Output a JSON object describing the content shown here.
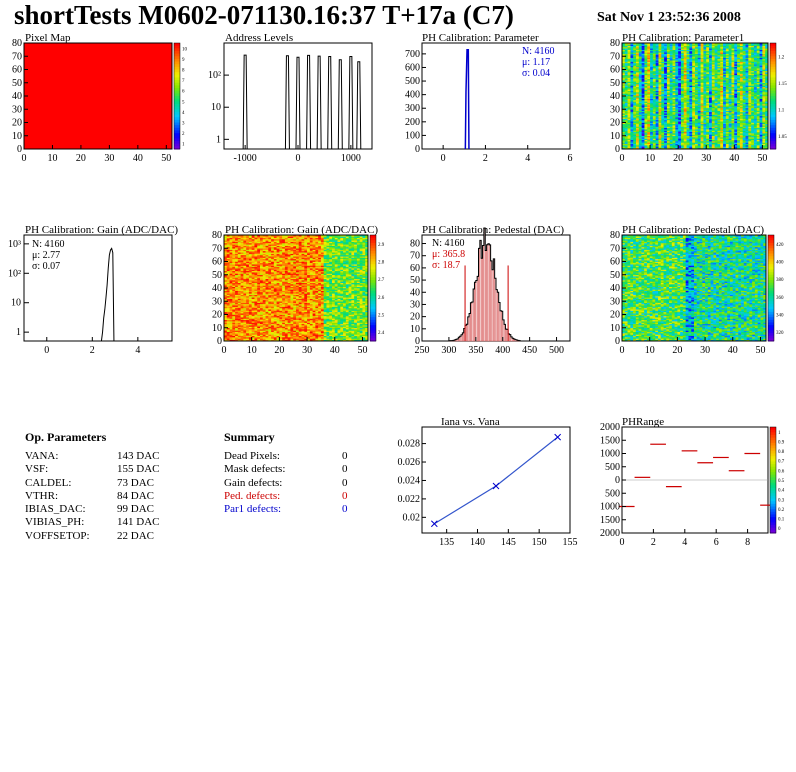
{
  "header": {
    "title": "shortTests M0602-071130.16:37 T+17a (C7)",
    "date": "Sat Nov  1 23:52:36 2008"
  },
  "colors": {
    "dark_red": "#cc0000",
    "blue": "#0000cc",
    "hist_line": "#000000",
    "graph_line": "#3355cc",
    "pedestal_fill": "#cc3333"
  },
  "plots": {
    "pixel_map": {
      "title": "Pixel Map",
      "type": "heatmap",
      "value": 10,
      "x_ticks": [
        "0",
        "10",
        "20",
        "30",
        "40",
        "50"
      ],
      "y_ticks": [
        "0",
        "10",
        "20",
        "30",
        "40",
        "50",
        "60",
        "70",
        "80"
      ],
      "z_ticks": [
        "10",
        "9",
        "8",
        "7",
        "6",
        "5",
        "4",
        "3",
        "2",
        "1"
      ]
    },
    "address_levels": {
      "title": "Address Levels",
      "type": "bar",
      "x_ticks": [
        "-1000",
        "0",
        "1000"
      ],
      "xlim": [
        -1400,
        1400
      ],
      "log_y": true,
      "peaks_x": [
        -1000,
        -200,
        0,
        200,
        400,
        600,
        800,
        1000,
        1150
      ]
    },
    "ph_param": {
      "title": "PH Calibration: Parameter",
      "type": "bar",
      "x_ticks": [
        "0",
        "2",
        "4",
        "6"
      ],
      "xlim": [
        -1,
        6
      ],
      "y_ticks": [
        "0",
        "100",
        "200",
        "300",
        "400",
        "500",
        "600",
        "700"
      ],
      "ylim": [
        0,
        780
      ],
      "stats": {
        "n": "N: 4160",
        "mean": "μ: 1.17",
        "sigma": "σ: 0.04"
      }
    },
    "ph_param1": {
      "title": "PH Calibration: Parameter1",
      "type": "heatmap",
      "x_ticks": [
        "0",
        "10",
        "20",
        "30",
        "40",
        "50"
      ],
      "y_ticks": [
        "0",
        "10",
        "20",
        "30",
        "40",
        "50",
        "60",
        "70",
        "80"
      ],
      "z_ticks": [
        "1.2",
        "1.15",
        "1.1",
        "1.05"
      ]
    },
    "ph_gain": {
      "title": "PH Calibration: Gain (ADC/DAC)",
      "type": "bar",
      "x_ticks": [
        "0",
        "2",
        "4"
      ],
      "xlim": [
        -1,
        5.5
      ],
      "log_y": true,
      "stats": {
        "n": "N: 4160",
        "mean": "μ: 2.77",
        "sigma": "σ: 0.07"
      }
    },
    "ph_gain_map": {
      "title": "PH Calibration: Gain (ADC/DAC)",
      "type": "heatmap",
      "x_ticks": [
        "0",
        "10",
        "20",
        "30",
        "40",
        "50"
      ],
      "y_ticks": [
        "0",
        "10",
        "20",
        "30",
        "40",
        "50",
        "60",
        "70",
        "80"
      ],
      "z_ticks": [
        "2.9",
        "2.8",
        "2.7",
        "2.6",
        "2.5",
        "2.4"
      ]
    },
    "ph_pedestal": {
      "title": "PH Calibration: Pedestal (DAC)",
      "type": "bar",
      "x_ticks": [
        "250",
        "300",
        "350",
        "400",
        "450",
        "500"
      ],
      "xlim": [
        250,
        525
      ],
      "y_ticks": [
        "0",
        "10",
        "20",
        "30",
        "40",
        "50",
        "60",
        "70",
        "80"
      ],
      "ylim": [
        0,
        87
      ],
      "cut_lines_x": [
        330,
        410
      ],
      "stats": {
        "n": "N: 4160",
        "mean": "μ: 365.8",
        "sigma": "σ: 18.7"
      }
    },
    "ph_pedestal_map": {
      "title": "PH Calibration: Pedestal (DAC)",
      "type": "heatmap",
      "x_ticks": [
        "0",
        "10",
        "20",
        "30",
        "40",
        "50"
      ],
      "y_ticks": [
        "0",
        "10",
        "20",
        "30",
        "40",
        "50",
        "60",
        "70",
        "80"
      ],
      "z_ticks": [
        "420",
        "400",
        "380",
        "360",
        "340",
        "320"
      ]
    },
    "iana_vana": {
      "title": "Iana vs. Vana",
      "type": "line",
      "x": [
        133,
        143,
        153
      ],
      "y": [
        0.0193,
        0.0234,
        0.0287
      ],
      "x_ticks": [
        "135",
        "140",
        "145",
        "150",
        "155"
      ],
      "xlim": [
        131,
        155
      ],
      "y_ticks": [
        "0.02",
        "0.022",
        "0.024",
        "0.026",
        "0.028"
      ],
      "ylim": [
        0.0183,
        0.0298
      ]
    },
    "ph_range": {
      "title": "PHRange",
      "type": "bar",
      "x": [
        0,
        1,
        2,
        3,
        4,
        5,
        6,
        7,
        8,
        9
      ],
      "y": [
        -1000,
        100,
        1350,
        -250,
        1100,
        650,
        850,
        350,
        1000,
        -950
      ],
      "x_ticks": [
        "0",
        "2",
        "4",
        "6",
        "8"
      ],
      "xlim": [
        0,
        9.3
      ],
      "y_ticks": [
        "2000",
        "1500",
        "1000",
        "500",
        "0",
        "-500",
        "-1000",
        "-1500",
        "-2000"
      ],
      "ylim": [
        -2000,
        2000
      ],
      "z_ticks": [
        "1",
        "0.9",
        "0.8",
        "0.7",
        "0.6",
        "0.5",
        "0.4",
        "0.3",
        "0.2",
        "0.1",
        "0"
      ]
    }
  },
  "op_params": {
    "heading": "Op. Parameters",
    "rows": [
      {
        "name": "VANA:",
        "value": "143 DAC"
      },
      {
        "name": "VSF:",
        "value": "155 DAC"
      },
      {
        "name": "CALDEL:",
        "value": "73 DAC"
      },
      {
        "name": "VTHR:",
        "value": "84 DAC"
      },
      {
        "name": "IBIAS_DAC:",
        "value": "99 DAC"
      },
      {
        "name": "VIBIAS_PH:",
        "value": "141 DAC"
      },
      {
        "name": "VOFFSETOP:",
        "value": "22 DAC"
      }
    ]
  },
  "summary": {
    "heading": "Summary",
    "rows": [
      {
        "name": "Dead Pixels:",
        "value": "0"
      },
      {
        "name": "Mask defects:",
        "value": "0"
      },
      {
        "name": "Gain defects:",
        "value": "0"
      },
      {
        "name": "Ped. defects:",
        "value": "0"
      },
      {
        "name": "Par1 defects:",
        "value": "0"
      }
    ]
  }
}
